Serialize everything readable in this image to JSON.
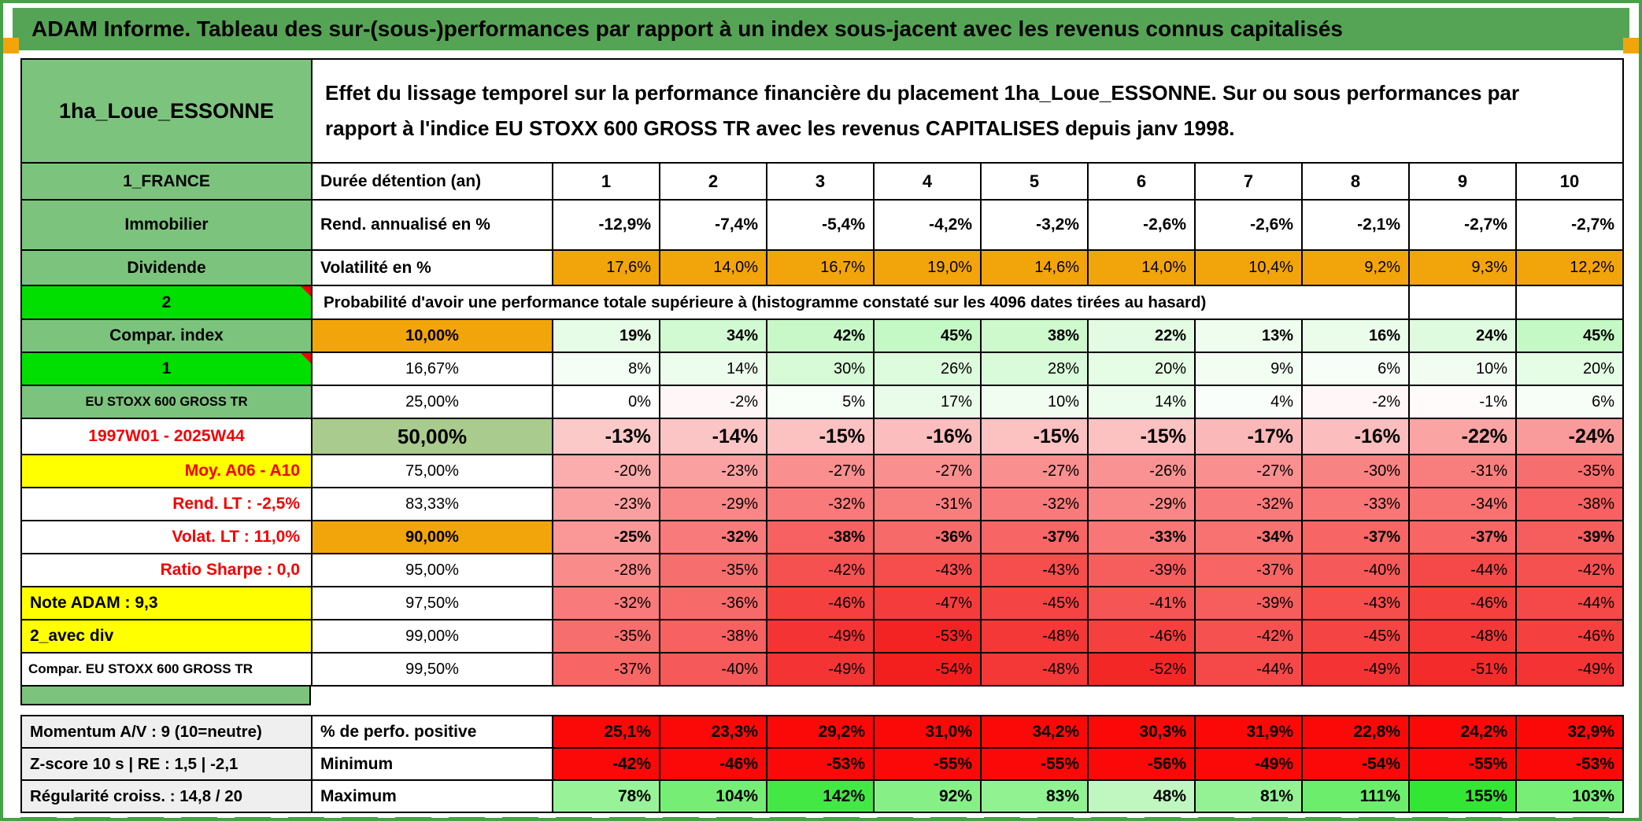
{
  "page": {
    "title": "ADAM Informe. Tableau des sur-(sous-)performances par rapport à un index sous-jacent avec les revenus connus capitalisés"
  },
  "colors": {
    "frame_green": "#46a246",
    "title_bar_green": "#55a455",
    "label_green": "#7cc47d",
    "bright_green": "#00df00",
    "orange": "#f2a50a",
    "yellow": "#ffff00",
    "sage_green": "#a9cb8d",
    "solid_red": "#fb0909",
    "red_text": "#f30000",
    "gray": "#efefef"
  },
  "header": {
    "name": "1ha_Loue_ESSONNE",
    "description": "Effet du lissage temporel sur la performance financière du placement 1ha_Loue_ESSONNE. Sur ou sous performances par\nrapport à l'indice EU STOXX 600 GROSS TR avec les revenus CAPITALISES depuis janv 1998."
  },
  "main_table": {
    "duration_label": "Durée détention (an)",
    "years": [
      "1",
      "2",
      "3",
      "4",
      "5",
      "6",
      "7",
      "8",
      "9",
      "10"
    ],
    "rows": [
      {
        "left": "1_FRANCE",
        "leftStyle": "green",
        "type": "years"
      },
      {
        "left": "Immobilier",
        "leftStyle": "green",
        "mid": "Rend. annualisé en %",
        "midStyle": "lbl",
        "cellStyle": "white-bold",
        "values": [
          "-12,9%",
          "-7,4%",
          "-5,4%",
          "-4,2%",
          "-3,2%",
          "-2,6%",
          "-2,6%",
          "-2,1%",
          "-2,7%",
          "-2,7%"
        ]
      },
      {
        "left": "Dividende",
        "leftStyle": "green",
        "mid": "Volatilité en %",
        "midStyle": "lbl",
        "cellStyle": "orange",
        "values": [
          "17,6%",
          "14,0%",
          "16,7%",
          "19,0%",
          "14,6%",
          "14,0%",
          "10,4%",
          "9,2%",
          "9,3%",
          "12,2%"
        ]
      },
      {
        "left": "2",
        "leftStyle": "bright",
        "note": true,
        "trailing": 2,
        "merged": "Probabilité d'avoir une performance totale supérieure à (histogramme constaté sur les 4096 dates tirées au hasard)"
      },
      {
        "left": "Compar. index",
        "leftStyle": "green",
        "mid": "10,00%",
        "midStyle": "pct-orange",
        "cellStyle": "scale-bold",
        "values": [
          19,
          34,
          42,
          45,
          38,
          22,
          13,
          16,
          24,
          45
        ]
      },
      {
        "left": "1",
        "leftStyle": "bright",
        "note": true,
        "mid": "16,67%",
        "midStyle": "pct",
        "cellStyle": "scale",
        "values": [
          8,
          14,
          30,
          26,
          28,
          20,
          9,
          6,
          10,
          20
        ]
      },
      {
        "left": "EU STOXX 600 GROSS TR",
        "leftStyle": "green-sm",
        "mid": "25,00%",
        "midStyle": "pct",
        "cellStyle": "scale",
        "values": [
          0,
          -2,
          5,
          17,
          10,
          14,
          4,
          -2,
          -1,
          6
        ]
      },
      {
        "left": "1997W01 - 2025W44",
        "leftStyle": "white-red",
        "mid": "50,00%",
        "midStyle": "pct-sage",
        "cellStyle": "scale-big",
        "values": [
          -13,
          -14,
          -15,
          -16,
          -15,
          -15,
          -17,
          -16,
          -22,
          -24
        ]
      },
      {
        "left": "Moy. A06 - A10",
        "leftStyle": "yellow-red",
        "mid": "75,00%",
        "midStyle": "pct",
        "cellStyle": "scale",
        "values": [
          -20,
          -23,
          -27,
          -27,
          -27,
          -26,
          -27,
          -30,
          -31,
          -35
        ]
      },
      {
        "left": "Rend. LT :   -2,5%",
        "leftStyle": "white-red-r",
        "mid": "83,33%",
        "midStyle": "pct",
        "cellStyle": "scale",
        "values": [
          -23,
          -29,
          -32,
          -31,
          -32,
          -29,
          -32,
          -33,
          -34,
          -38
        ]
      },
      {
        "left": "Volat. LT :   11,0%",
        "leftStyle": "white-red-r",
        "mid": "90,00%",
        "midStyle": "pct-orange",
        "cellStyle": "scale-bold",
        "values": [
          -25,
          -32,
          -38,
          -36,
          -37,
          -33,
          -34,
          -37,
          -37,
          -39
        ]
      },
      {
        "left": "Ratio Sharpe :   0,0",
        "leftStyle": "white-red-r",
        "mid": "95,00%",
        "midStyle": "pct",
        "cellStyle": "scale",
        "values": [
          -28,
          -35,
          -42,
          -43,
          -43,
          -39,
          -37,
          -40,
          -44,
          -42
        ]
      },
      {
        "left": "Note ADAM : 9,3",
        "leftStyle": "yellow-left",
        "mid": "97,50%",
        "midStyle": "pct",
        "cellStyle": "scale",
        "values": [
          -32,
          -36,
          -46,
          -47,
          -45,
          -41,
          -39,
          -43,
          -46,
          -44
        ]
      },
      {
        "left": "2_avec div",
        "leftStyle": "yellow-left",
        "mid": "99,00%",
        "midStyle": "pct",
        "cellStyle": "scale",
        "values": [
          -35,
          -38,
          -49,
          -53,
          -48,
          -46,
          -42,
          -45,
          -48,
          -46
        ]
      },
      {
        "left": "Compar. EU STOXX 600 GROSS TR",
        "leftStyle": "white-sm-left",
        "mid": "99,50%",
        "midStyle": "pct",
        "cellStyle": "scale",
        "values": [
          -37,
          -40,
          -49,
          -54,
          -48,
          -52,
          -44,
          -49,
          -51,
          -49
        ]
      }
    ]
  },
  "bottom_table": {
    "rows": [
      {
        "left": "Momentum A/V : 9 (10=neutre)",
        "mid": "% de perfo. positive",
        "cellStyle": "solid-red",
        "values": [
          "25,1%",
          "23,3%",
          "29,2%",
          "31,0%",
          "34,2%",
          "30,3%",
          "31,9%",
          "22,8%",
          "24,2%",
          "32,9%"
        ]
      },
      {
        "left": "Z-score 10 s  |  RE : 1,5  | -2,1",
        "mid": "Minimum",
        "cellStyle": "solid-red",
        "values": [
          "-42%",
          "-46%",
          "-53%",
          "-55%",
          "-55%",
          "-56%",
          "-49%",
          "-54%",
          "-55%",
          "-53%"
        ]
      },
      {
        "left": "Régularité croiss. : 14,8 / 20",
        "mid": "Maximum",
        "cellStyle": "green-scale",
        "values": [
          78,
          104,
          142,
          92,
          83,
          48,
          81,
          111,
          155,
          103
        ]
      }
    ]
  }
}
